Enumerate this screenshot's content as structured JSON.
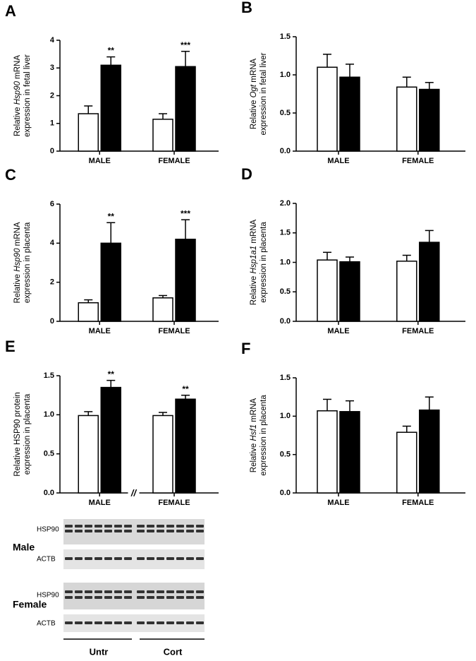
{
  "chart_data": [
    {
      "type": "bar",
      "label": "A",
      "ylabel": [
        [
          "Relative ",
          "Hsp90",
          " mRNA"
        ],
        [
          "expression in fetal liver"
        ]
      ],
      "categories": [
        "MALE",
        "FEMALE"
      ],
      "series": [
        {
          "color": "#ffffff",
          "values": [
            1.35,
            1.15
          ],
          "errors": [
            0.28,
            0.2
          ]
        },
        {
          "color": "#000000",
          "values": [
            3.1,
            3.05
          ],
          "errors": [
            0.3,
            0.55
          ],
          "annotations": [
            "**",
            "***"
          ]
        }
      ],
      "ylim": [
        0,
        4
      ],
      "yticks": [
        0,
        1,
        2,
        3,
        4
      ]
    },
    {
      "type": "bar",
      "label": "B",
      "ylabel": [
        [
          "Relative ",
          "Ogt",
          " mRNA"
        ],
        [
          "expression in fetal liver"
        ]
      ],
      "categories": [
        "MALE",
        "FEMALE"
      ],
      "series": [
        {
          "color": "#ffffff",
          "values": [
            1.1,
            0.84
          ],
          "errors": [
            0.17,
            0.13
          ]
        },
        {
          "color": "#000000",
          "values": [
            0.97,
            0.81
          ],
          "errors": [
            0.17,
            0.09
          ]
        }
      ],
      "ylim": [
        0,
        1.5
      ],
      "yticks": [
        {
          "value": 0,
          "label": "0.0"
        },
        0.5,
        {
          "value": 1,
          "label": "1.0"
        },
        1.5
      ]
    },
    {
      "type": "bar",
      "label": "C",
      "ylabel": [
        [
          "Relative ",
          "Hsp90",
          " mRNA"
        ],
        [
          "expression in placenta"
        ]
      ],
      "categories": [
        "MALE",
        "FEMALE"
      ],
      "series": [
        {
          "color": "#ffffff",
          "values": [
            0.95,
            1.2
          ],
          "errors": [
            0.15,
            0.12
          ]
        },
        {
          "color": "#000000",
          "values": [
            4.0,
            4.2
          ],
          "errors": [
            1.05,
            1.0
          ],
          "annotations": [
            "**",
            "***"
          ]
        }
      ],
      "ylim": [
        0,
        6
      ],
      "yticks": [
        0,
        2,
        4,
        6
      ]
    },
    {
      "type": "bar",
      "label": "D",
      "ylabel": [
        [
          "Relative ",
          "Hsp1a1",
          " mRNA"
        ],
        [
          "expression in placenta"
        ]
      ],
      "categories": [
        "MALE",
        "FEMALE"
      ],
      "series": [
        {
          "color": "#ffffff",
          "values": [
            1.04,
            1.02
          ],
          "errors": [
            0.13,
            0.1
          ]
        },
        {
          "color": "#000000",
          "values": [
            1.01,
            1.34
          ],
          "errors": [
            0.08,
            0.2
          ]
        }
      ],
      "ylim": [
        0,
        2
      ],
      "yticks": [
        {
          "value": 0,
          "label": "0.0"
        },
        0.5,
        {
          "value": 1,
          "label": "1.0"
        },
        1.5,
        {
          "value": 2,
          "label": "2.0"
        }
      ]
    },
    {
      "type": "bar",
      "label": "E",
      "ylabel": [
        [
          "Relative HSP90 protein"
        ],
        [
          "expression in placenta"
        ]
      ],
      "categories": [
        "MALE",
        "FEMALE"
      ],
      "series": [
        {
          "color": "#ffffff",
          "values": [
            0.99,
            0.99
          ],
          "errors": [
            0.05,
            0.04
          ]
        },
        {
          "color": "#000000",
          "values": [
            1.35,
            1.2
          ],
          "errors": [
            0.09,
            0.05
          ],
          "annotations": [
            "**",
            "**"
          ]
        }
      ],
      "ylim": [
        0,
        1.5
      ],
      "yticks": [
        {
          "value": 0,
          "label": "0.0"
        },
        0.5,
        {
          "value": 1,
          "label": "1.0"
        },
        1.5
      ],
      "axis_break": "//"
    },
    {
      "type": "bar",
      "label": "F",
      "ylabel": [
        [
          "Relative ",
          "Hsf1",
          " mRNA"
        ],
        [
          "expression in placenta"
        ]
      ],
      "categories": [
        "MALE",
        "FEMALE"
      ],
      "series": [
        {
          "color": "#ffffff",
          "values": [
            1.07,
            0.79
          ],
          "errors": [
            0.15,
            0.08
          ]
        },
        {
          "color": "#000000",
          "values": [
            1.06,
            1.08
          ],
          "errors": [
            0.14,
            0.17
          ]
        }
      ],
      "ylim": [
        0,
        1.5
      ],
      "yticks": [
        {
          "value": 0,
          "label": "0.0"
        },
        0.5,
        {
          "value": 1,
          "label": "1.0"
        },
        1.5
      ]
    }
  ],
  "blot": {
    "male": "Male",
    "female": "Female",
    "rows": [
      "HSP90",
      "ACTB",
      "HSP90",
      "ACTB"
    ],
    "groups": [
      "Untr",
      "Cort"
    ]
  }
}
